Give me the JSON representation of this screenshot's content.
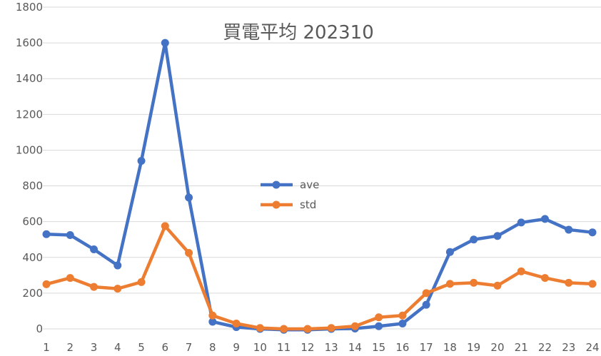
{
  "chart_data": {
    "type": "line",
    "title": "買電平均 202310",
    "xlabel": "",
    "ylabel": "",
    "categories": [
      "1",
      "2",
      "3",
      "4",
      "5",
      "6",
      "7",
      "8",
      "9",
      "10",
      "11",
      "12",
      "13",
      "14",
      "15",
      "16",
      "17",
      "18",
      "19",
      "20",
      "21",
      "22",
      "23",
      "24"
    ],
    "ylim": [
      0,
      1800
    ],
    "yticks": [
      "0",
      "200",
      "400",
      "600",
      "800",
      "1000",
      "1200",
      "1400",
      "1600",
      "1800"
    ],
    "grid": true,
    "legend_position": "center",
    "series": [
      {
        "name": "ave",
        "color": "#4472C4",
        "values": [
          530,
          525,
          445,
          355,
          940,
          1600,
          735,
          40,
          10,
          0,
          -5,
          -5,
          0,
          2,
          15,
          30,
          135,
          430,
          500,
          520,
          595,
          615,
          555,
          540
        ]
      },
      {
        "name": "std",
        "color": "#ED7D31",
        "values": [
          250,
          285,
          235,
          225,
          262,
          575,
          425,
          75,
          30,
          5,
          0,
          0,
          5,
          15,
          65,
          75,
          200,
          252,
          258,
          242,
          322,
          285,
          258,
          252
        ]
      }
    ]
  }
}
